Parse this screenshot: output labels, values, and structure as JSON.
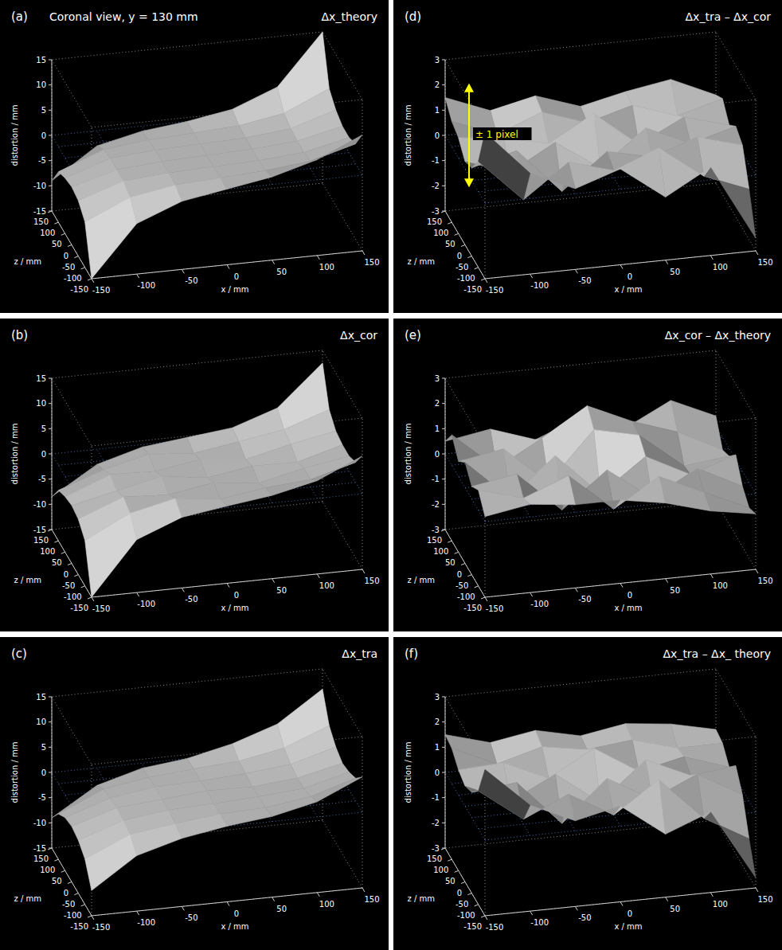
{
  "chart_data": [
    {
      "type": "surface",
      "panel": "(a)",
      "subtitle": "Coronal view, y = 130 mm",
      "title": "Δx_theory",
      "color": "#d8d8d8",
      "x": [
        -150,
        -100,
        -50,
        0,
        50,
        100,
        150
      ],
      "z": [
        -150,
        -100,
        -50,
        0,
        50,
        100,
        150
      ],
      "values": [
        [
          -15,
          -5,
          -1.5,
          0,
          1.5,
          4,
          8
        ],
        [
          -6,
          -2,
          -0.5,
          0,
          0.5,
          1.5,
          4
        ],
        [
          -4,
          -1,
          -0.3,
          0,
          0.3,
          1,
          3
        ],
        [
          -3.5,
          -1,
          -0.3,
          0,
          0.3,
          1,
          3
        ],
        [
          -4,
          -1,
          -0.3,
          0,
          0.3,
          1.2,
          4
        ],
        [
          -5,
          -1.5,
          -0.5,
          0,
          0.5,
          2,
          6
        ],
        [
          -9,
          -3,
          -1,
          0,
          1.5,
          5,
          15
        ]
      ],
      "xlim": [
        -150,
        150
      ],
      "zlim": [
        -150,
        150
      ],
      "ylim": [
        -15,
        15
      ],
      "xticks": [
        -150,
        -100,
        -50,
        0,
        50,
        100,
        150
      ],
      "zticks": [
        -150,
        -100,
        -50,
        0,
        50,
        100,
        150
      ],
      "yticks": [
        -15,
        -10,
        -5,
        0,
        5,
        10,
        15
      ],
      "x_label": "x / mm",
      "z_label": "z / mm",
      "y_label": "distortion / mm"
    },
    {
      "type": "surface",
      "panel": "(b)",
      "title": "Δx_cor",
      "color": "#d8d8d8",
      "x": [
        -150,
        -100,
        -50,
        0,
        50,
        100,
        150
      ],
      "z": [
        -150,
        -100,
        -50,
        0,
        50,
        100,
        150
      ],
      "values": [
        [
          -15,
          -4.5,
          -1,
          0.3,
          1.5,
          3.5,
          7.5
        ],
        [
          -6,
          -1.5,
          0.5,
          -0.5,
          0.8,
          1.5,
          4
        ],
        [
          -4,
          -0.5,
          -1,
          0.5,
          -0.5,
          1.5,
          3
        ],
        [
          -3.5,
          -1.5,
          0.5,
          -0.8,
          0.6,
          0.5,
          3
        ],
        [
          -4,
          -0.5,
          -0.8,
          0.6,
          -0.3,
          1.8,
          3.5
        ],
        [
          -5,
          -1.8,
          0.3,
          -0.4,
          1,
          2.5,
          5.5
        ],
        [
          -8.5,
          -3,
          -0.5,
          0.5,
          1.5,
          4.5,
          12.5
        ]
      ],
      "xlim": [
        -150,
        150
      ],
      "zlim": [
        -150,
        150
      ],
      "ylim": [
        -15,
        15
      ],
      "xticks": [
        -150,
        -100,
        -50,
        0,
        50,
        100,
        150
      ],
      "zticks": [
        -150,
        -100,
        -50,
        0,
        50,
        100,
        150
      ],
      "yticks": [
        -15,
        -10,
        -5,
        0,
        5,
        10,
        15
      ],
      "x_label": "x / mm",
      "z_label": "z / mm",
      "y_label": "distortion / mm"
    },
    {
      "type": "surface",
      "panel": "(c)",
      "title": "Δx_tra",
      "color": "#d8d8d8",
      "x": [
        -150,
        -100,
        -50,
        0,
        50,
        100,
        150
      ],
      "z": [
        -150,
        -100,
        -50,
        0,
        50,
        100,
        150
      ],
      "values": [
        [
          -10,
          -4,
          -1.5,
          0,
          1,
          3,
          7
        ],
        [
          -6,
          -2,
          -0.8,
          0.2,
          0.5,
          1.8,
          4.5
        ],
        [
          -4.5,
          -1.5,
          -0.3,
          0,
          0.5,
          1.2,
          3.5
        ],
        [
          -4,
          -1.2,
          -0.5,
          0.3,
          0.2,
          1,
          3
        ],
        [
          -4.5,
          -1.5,
          -0.2,
          0,
          0.6,
          1.5,
          4
        ],
        [
          -6,
          -2,
          -0.6,
          0.2,
          0.8,
          2.5,
          6
        ],
        [
          -9,
          -3.5,
          -1,
          0,
          2,
          5,
          11
        ]
      ],
      "xlim": [
        -150,
        150
      ],
      "zlim": [
        -150,
        150
      ],
      "ylim": [
        -15,
        15
      ],
      "xticks": [
        -150,
        -100,
        -50,
        0,
        50,
        100,
        150
      ],
      "zticks": [
        -150,
        -100,
        -50,
        0,
        50,
        100,
        150
      ],
      "yticks": [
        -15,
        -10,
        -5,
        0,
        5,
        10,
        15
      ],
      "x_label": "x / mm",
      "z_label": "z / mm",
      "y_label": "distortion / mm"
    },
    {
      "type": "surface",
      "panel": "(d)",
      "title": "Δx_tra – Δx_cor",
      "color": "#d8d8d8",
      "x": [
        -150,
        -100,
        -50,
        0,
        50,
        100,
        150
      ],
      "z": [
        -150,
        -100,
        -50,
        0,
        50,
        100,
        150
      ],
      "values": [
        [
          2.8,
          1.0,
          0.2,
          0.8,
          -0.5,
          0.5,
          -2.5
        ],
        [
          1.2,
          -0.5,
          0.8,
          0.3,
          1.0,
          -0.3,
          -1.0
        ],
        [
          0.5,
          1.0,
          -0.8,
          0.6,
          0.2,
          0.8,
          0.3
        ],
        [
          0.3,
          -0.3,
          0.7,
          -0.5,
          0.9,
          0.1,
          0.6
        ],
        [
          0.8,
          0.6,
          0.2,
          1.2,
          -0.2,
          0.7,
          0.2
        ],
        [
          1.0,
          0.3,
          1.0,
          0.4,
          0.9,
          0.3,
          0.8
        ],
        [
          1.5,
          0.8,
          1.2,
          0.6,
          1.0,
          1.3,
          0.5
        ]
      ],
      "xlim": [
        -150,
        150
      ],
      "zlim": [
        -150,
        150
      ],
      "ylim": [
        -3,
        3
      ],
      "xticks": [
        -150,
        -100,
        -50,
        0,
        50,
        100,
        150
      ],
      "zticks": [
        -150,
        -100,
        -50,
        0,
        50,
        100,
        150
      ],
      "yticks": [
        -3,
        -2,
        -1,
        0,
        1,
        2,
        3
      ],
      "x_label": "x / mm",
      "z_label": "z / mm",
      "y_label": "distortion / mm",
      "annotation": {
        "text": "± 1 pixel",
        "from": -2,
        "to": 2,
        "color": "#ffff00"
      }
    },
    {
      "type": "surface",
      "panel": "(e)",
      "title": "Δx_cor – Δx_theory",
      "color": "#d8d8d8",
      "x": [
        -150,
        -100,
        -50,
        0,
        50,
        100,
        150
      ],
      "z": [
        -150,
        -100,
        -50,
        0,
        50,
        100,
        150
      ],
      "values": [
        [
          0.2,
          0.5,
          0.3,
          0.3,
          0.0,
          -0.5,
          -0.8
        ],
        [
          0.8,
          0.3,
          1.0,
          -0.5,
          0.6,
          -0.2,
          -1.0
        ],
        [
          0.5,
          0.8,
          -0.8,
          0.6,
          -0.7,
          0.3,
          -0.6
        ],
        [
          1.0,
          -0.6,
          0.9,
          -0.8,
          0.5,
          -0.4,
          0.2
        ],
        [
          0.6,
          0.9,
          -0.6,
          1.3,
          0.9,
          -0.5,
          -0.3
        ],
        [
          1.2,
          -0.3,
          0.7,
          1.8,
          1.0,
          0.4,
          -0.5
        ],
        [
          0.5,
          0.8,
          0.2,
          0.9,
          0.3,
          1.2,
          0.4
        ]
      ],
      "xlim": [
        -150,
        150
      ],
      "zlim": [
        -150,
        150
      ],
      "ylim": [
        -3,
        3
      ],
      "xticks": [
        -150,
        -100,
        -50,
        0,
        50,
        100,
        150
      ],
      "zticks": [
        -150,
        -100,
        -50,
        0,
        50,
        100,
        150
      ],
      "yticks": [
        -3,
        -2,
        -1,
        0,
        1,
        2,
        3
      ],
      "x_label": "x / mm",
      "z_label": "z / mm",
      "y_label": "distortion / mm"
    },
    {
      "type": "surface",
      "panel": "(f)",
      "title": "Δx_tra – Δx_ theory",
      "color": "#d8d8d8",
      "x": [
        -150,
        -100,
        -50,
        0,
        50,
        100,
        150
      ],
      "z": [
        -150,
        -100,
        -50,
        0,
        50,
        100,
        150
      ],
      "values": [
        [
          2.8,
          1.2,
          0.4,
          0.8,
          -0.5,
          0.2,
          -2.6
        ],
        [
          1.5,
          0.2,
          1.0,
          0.0,
          1.2,
          -0.5,
          -1.5
        ],
        [
          1.0,
          1.2,
          -0.6,
          1.0,
          0.0,
          0.8,
          -0.2
        ],
        [
          0.8,
          0.0,
          0.9,
          -0.4,
          1.1,
          0.3,
          0.5
        ],
        [
          1.0,
          1.1,
          0.3,
          1.3,
          0.2,
          0.6,
          0.0
        ],
        [
          1.4,
          0.6,
          1.1,
          0.8,
          1.0,
          0.5,
          0.5
        ],
        [
          1.5,
          1.0,
          1.3,
          0.9,
          1.2,
          1.0,
          0.6
        ]
      ],
      "xlim": [
        -150,
        150
      ],
      "zlim": [
        -150,
        150
      ],
      "ylim": [
        -3,
        3
      ],
      "xticks": [
        -150,
        -100,
        -50,
        0,
        50,
        100,
        150
      ],
      "zticks": [
        -150,
        -100,
        -50,
        0,
        50,
        100,
        150
      ],
      "yticks": [
        -3,
        -2,
        -1,
        0,
        1,
        2,
        3
      ],
      "x_label": "x / mm",
      "z_label": "z / mm",
      "y_label": "distortion / mm"
    }
  ]
}
